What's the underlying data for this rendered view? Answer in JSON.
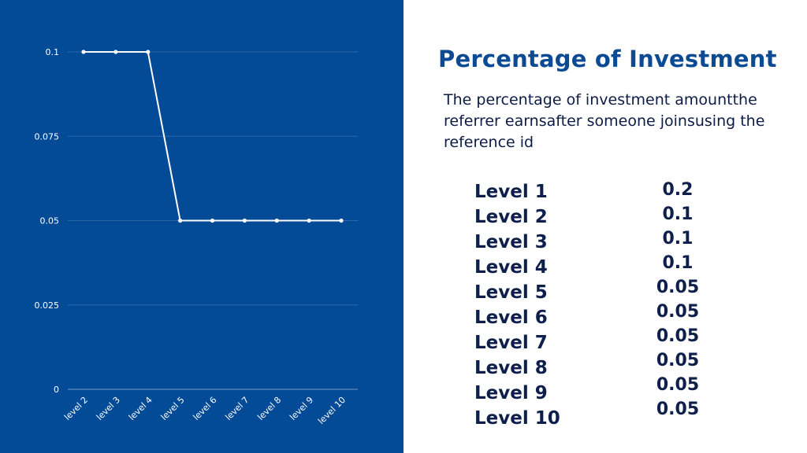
{
  "chart_data": {
    "type": "line",
    "categories": [
      "level 2",
      "level 3",
      "level 4",
      "level 5",
      "level 6",
      "level 7",
      "level 8",
      "level 9",
      "level 10"
    ],
    "values": [
      0.1,
      0.1,
      0.1,
      0.05,
      0.05,
      0.05,
      0.05,
      0.05,
      0.05
    ],
    "yticks": [
      "0",
      "0.025",
      "0.05",
      "0.075",
      "0.1"
    ],
    "ylim": [
      0,
      0.1
    ],
    "grid": true,
    "legend": "none"
  },
  "info": {
    "title": "Percentage of Investment",
    "description": "The percentage of investment amountthe referrer earnsafter someone joinsusing the reference id",
    "levels": [
      "Level 1",
      "Level 2",
      "Level 3",
      "Level 4",
      "Level 5",
      "Level 6",
      "Level 7",
      "Level 8",
      "Level 9",
      "Level 10"
    ],
    "values": [
      "0.2",
      "0.1",
      "0.1",
      "0.1",
      "0.05",
      "0.05",
      "0.05",
      "0.05",
      "0.05",
      "0.05"
    ]
  },
  "colors": {
    "panel_background": "#034a97",
    "line": "#ffffff",
    "title": "#0c4b94",
    "text": "#0d1f4a"
  }
}
